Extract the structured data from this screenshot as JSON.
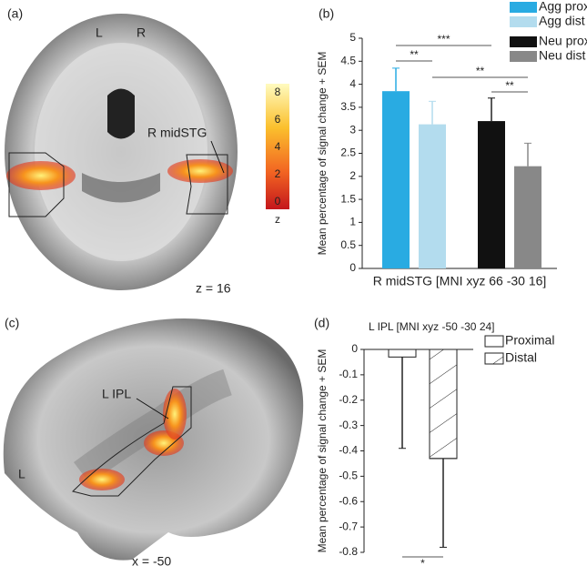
{
  "figure": {
    "panel_a": {
      "label": "(a)",
      "left": "L",
      "right": "R",
      "region": "R midSTG",
      "slice": "z = 16"
    },
    "colorbar": {
      "ticks": [
        0,
        2,
        4,
        6,
        8
      ],
      "label": "z"
    },
    "panel_c": {
      "label": "(c)",
      "region": "L IPL",
      "side": "L",
      "slice": "x = -50"
    }
  },
  "chart_data": [
    {
      "type": "bar",
      "panel": "(b)",
      "xlabel": "R midSTG [MNI xyz 66 -30 16]",
      "ylabel": "Mean percentage of signal change + SEM",
      "categories": [
        null,
        null
      ],
      "ylim": [
        0,
        5
      ],
      "yticks": [
        0,
        0.5,
        1,
        1.5,
        2,
        2.5,
        3,
        3.5,
        4,
        4.5,
        5
      ],
      "series": [
        {
          "name": "Agg prox",
          "color": "#29abe2",
          "values": [
            3.85,
            null
          ],
          "errors": [
            0.5,
            null
          ]
        },
        {
          "name": "Agg dist",
          "color": "#b3dcee",
          "values": [
            3.13,
            null
          ],
          "errors": [
            0.5,
            null
          ]
        },
        {
          "name": "Neu prox",
          "color": "#111111",
          "values": [
            null,
            3.2
          ],
          "errors": [
            null,
            0.5
          ]
        },
        {
          "name": "Neu dist",
          "color": "#888888",
          "values": [
            null,
            2.22
          ],
          "errors": [
            null,
            0.5
          ]
        }
      ],
      "comparisons": [
        {
          "pair": [
            "Agg prox",
            "Neu prox"
          ],
          "label": "***"
        },
        {
          "pair": [
            "Agg prox",
            "Agg dist"
          ],
          "label": "**"
        },
        {
          "pair": [
            "Agg dist",
            "Neu dist"
          ],
          "label": "**"
        },
        {
          "pair": [
            "Neu prox",
            "Neu dist"
          ],
          "label": "**"
        }
      ]
    },
    {
      "type": "bar",
      "panel": "(d)",
      "title": "L IPL [MNI xyz -50 -30 24]",
      "ylabel": "Mean percentage of signal change + SEM",
      "categories": [
        null
      ],
      "ylim": [
        -0.8,
        0
      ],
      "yticks": [
        0,
        -0.1,
        -0.2,
        -0.3,
        -0.4,
        -0.5,
        -0.6,
        -0.7,
        -0.8
      ],
      "series": [
        {
          "name": "Proximal",
          "color": "#ffffff",
          "hatch": false,
          "values": [
            -0.03
          ],
          "errors": [
            0.36
          ]
        },
        {
          "name": "Distal",
          "color": "#ffffff",
          "hatch": true,
          "values": [
            -0.43
          ],
          "errors": [
            0.35
          ]
        }
      ],
      "comparisons": [
        {
          "pair": [
            "Proximal",
            "Distal"
          ],
          "label": "*"
        }
      ]
    }
  ]
}
